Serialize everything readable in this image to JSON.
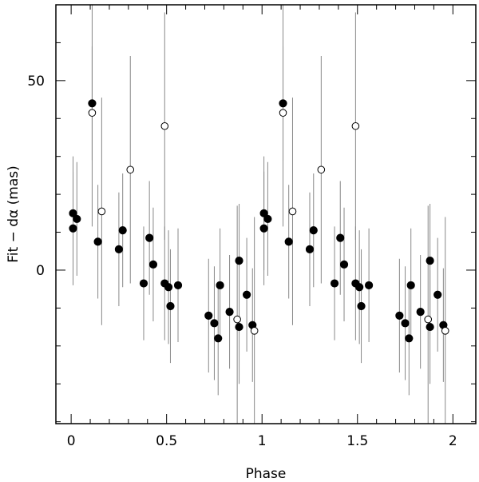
{
  "chart_data": {
    "type": "scatter",
    "xlabel": "Phase",
    "ylabel": "Fit − dα (mas)",
    "xlim": [
      -0.08,
      2.12
    ],
    "ylim": [
      -40.5,
      70
    ],
    "x_ticks": [
      0,
      0.5,
      1,
      1.5,
      2
    ],
    "x_tick_labels": [
      "0",
      "0.5",
      "1",
      "1.5",
      "2"
    ],
    "y_ticks": [
      0,
      50
    ],
    "y_tick_labels": [
      "0",
      "50"
    ],
    "grid": false,
    "colors": {
      "points": "#000000",
      "error_bars": "#888888",
      "frame": "#000000"
    },
    "series": [
      {
        "marker": "filled-circle",
        "points": [
          {
            "x": 0.01,
            "y": 15,
            "err": 15
          },
          {
            "x": 0.01,
            "y": 11,
            "err": 15
          },
          {
            "x": 0.03,
            "y": 13.5,
            "err": 15
          },
          {
            "x": 0.11,
            "y": 44,
            "err": 15
          },
          {
            "x": 0.14,
            "y": 7.5,
            "err": 15
          },
          {
            "x": 0.25,
            "y": 5.5,
            "err": 15
          },
          {
            "x": 0.27,
            "y": 10.5,
            "err": 15
          },
          {
            "x": 0.38,
            "y": -3.5,
            "err": 15
          },
          {
            "x": 0.41,
            "y": 8.5,
            "err": 15
          },
          {
            "x": 0.43,
            "y": 1.5,
            "err": 15
          },
          {
            "x": 0.49,
            "y": -3.5,
            "err": 15
          },
          {
            "x": 0.51,
            "y": -4.5,
            "err": 15
          },
          {
            "x": 0.52,
            "y": -9.5,
            "err": 15
          },
          {
            "x": 0.56,
            "y": -4,
            "err": 15
          },
          {
            "x": 0.72,
            "y": -12,
            "err": 15
          },
          {
            "x": 0.75,
            "y": -14,
            "err": 15
          },
          {
            "x": 0.77,
            "y": -18,
            "err": 15
          },
          {
            "x": 0.78,
            "y": -4,
            "err": 15
          },
          {
            "x": 0.83,
            "y": -11,
            "err": 15
          },
          {
            "x": 0.88,
            "y": 2.5,
            "err": 15
          },
          {
            "x": 0.88,
            "y": -15,
            "err": 15
          },
          {
            "x": 0.92,
            "y": -6.5,
            "err": 15
          },
          {
            "x": 0.95,
            "y": -14.5,
            "err": 15
          },
          {
            "x": 1.01,
            "y": 15,
            "err": 15
          },
          {
            "x": 1.01,
            "y": 11,
            "err": 15
          },
          {
            "x": 1.03,
            "y": 13.5,
            "err": 15
          },
          {
            "x": 1.11,
            "y": 44,
            "err": 15
          },
          {
            "x": 1.14,
            "y": 7.5,
            "err": 15
          },
          {
            "x": 1.25,
            "y": 5.5,
            "err": 15
          },
          {
            "x": 1.27,
            "y": 10.5,
            "err": 15
          },
          {
            "x": 1.38,
            "y": -3.5,
            "err": 15
          },
          {
            "x": 1.41,
            "y": 8.5,
            "err": 15
          },
          {
            "x": 1.43,
            "y": 1.5,
            "err": 15
          },
          {
            "x": 1.49,
            "y": -3.5,
            "err": 15
          },
          {
            "x": 1.51,
            "y": -4.5,
            "err": 15
          },
          {
            "x": 1.52,
            "y": -9.5,
            "err": 15
          },
          {
            "x": 1.56,
            "y": -4,
            "err": 15
          },
          {
            "x": 1.72,
            "y": -12,
            "err": 15
          },
          {
            "x": 1.75,
            "y": -14,
            "err": 15
          },
          {
            "x": 1.77,
            "y": -18,
            "err": 15
          },
          {
            "x": 1.78,
            "y": -4,
            "err": 15
          },
          {
            "x": 1.83,
            "y": -11,
            "err": 15
          },
          {
            "x": 1.88,
            "y": 2.5,
            "err": 15
          },
          {
            "x": 1.88,
            "y": -15,
            "err": 15
          },
          {
            "x": 1.92,
            "y": -6.5,
            "err": 15
          },
          {
            "x": 1.95,
            "y": -14.5,
            "err": 15
          }
        ]
      },
      {
        "marker": "open-circle",
        "points": [
          {
            "x": 0.11,
            "y": 41.5,
            "err": 30
          },
          {
            "x": 0.16,
            "y": 15.5,
            "err": 30
          },
          {
            "x": 0.31,
            "y": 26.5,
            "err": 30
          },
          {
            "x": 0.49,
            "y": 38,
            "err": 30
          },
          {
            "x": 0.87,
            "y": -13,
            "err": 30
          },
          {
            "x": 0.96,
            "y": -16,
            "err": 30
          },
          {
            "x": 1.11,
            "y": 41.5,
            "err": 30
          },
          {
            "x": 1.16,
            "y": 15.5,
            "err": 30
          },
          {
            "x": 1.31,
            "y": 26.5,
            "err": 30
          },
          {
            "x": 1.49,
            "y": 38,
            "err": 30
          },
          {
            "x": 1.87,
            "y": -13,
            "err": 30
          },
          {
            "x": 1.96,
            "y": -16,
            "err": 30
          }
        ]
      }
    ]
  }
}
